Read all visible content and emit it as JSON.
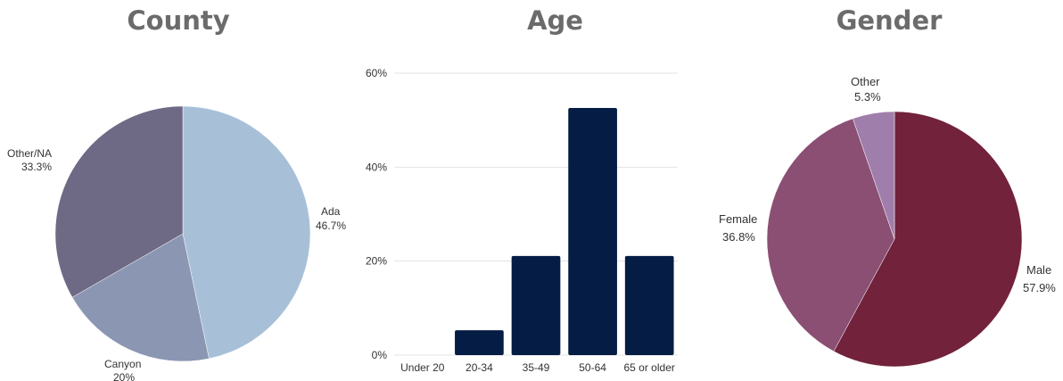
{
  "chart_data": [
    {
      "type": "pie",
      "title": "County",
      "slices": [
        {
          "label": "Ada",
          "value_text": "46.7%",
          "value": 46.7,
          "color": "#a7c0d8"
        },
        {
          "label": "Canyon",
          "value_text": "20%",
          "value": 20.0,
          "color": "#8b96b2"
        },
        {
          "label": "Other/NA",
          "value_text": "33.3%",
          "value": 33.3,
          "color": "#6e6984"
        }
      ]
    },
    {
      "type": "bar",
      "title": "Age",
      "categories": [
        "Under 20",
        "20-34",
        "35-49",
        "50-64",
        "65 or older"
      ],
      "values": [
        0,
        5.3,
        21.1,
        52.6,
        21.1
      ],
      "ylim": [
        0,
        60
      ],
      "yticks": [
        "0%",
        "20%",
        "40%",
        "60%"
      ],
      "grid": true,
      "bar_color": "#051d44"
    },
    {
      "type": "pie",
      "title": "Gender",
      "slices": [
        {
          "label": "Male",
          "value_text": "57.9%",
          "value": 57.9,
          "color": "#72223b"
        },
        {
          "label": "Female",
          "value_text": "36.8%",
          "value": 36.8,
          "color": "#8b4f73"
        },
        {
          "label": "Other",
          "value_text": "5.3%",
          "value": 5.3,
          "color": "#a07eab"
        }
      ]
    }
  ]
}
